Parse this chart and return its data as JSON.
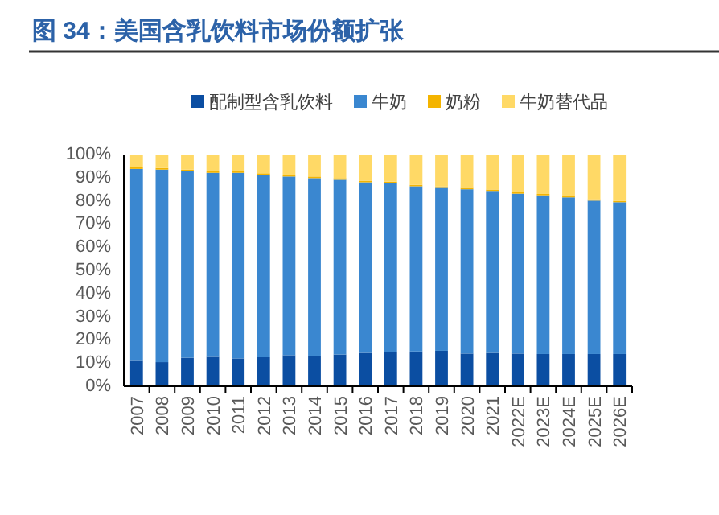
{
  "chart_data": {
    "type": "bar",
    "stacked": true,
    "title": "图 34：美国含乳饮料市场份额扩张",
    "categories": [
      "2007",
      "2008",
      "2009",
      "2010",
      "2011",
      "2012",
      "2013",
      "2014",
      "2015",
      "2016",
      "2017",
      "2018",
      "2019",
      "2020",
      "2021",
      "2022E",
      "2023E",
      "2024E",
      "2025E",
      "2026E"
    ],
    "series": [
      {
        "name": "配制型含乳饮料",
        "color": "#0b4ea2",
        "values": [
          11.3,
          10.4,
          12.3,
          12.7,
          12.0,
          12.5,
          13.4,
          13.2,
          13.7,
          14.4,
          14.8,
          15.0,
          15.3,
          14.1,
          14.4,
          14.1,
          13.9,
          13.9,
          13.9,
          13.9
        ]
      },
      {
        "name": "牛奶",
        "color": "#3a87d0",
        "values": [
          82.5,
          83.1,
          80.5,
          79.4,
          80.1,
          78.7,
          77.1,
          76.6,
          75.4,
          73.6,
          72.9,
          71.3,
          70.3,
          70.9,
          69.9,
          69.0,
          68.5,
          67.6,
          66.2,
          65.5
        ]
      },
      {
        "name": "奶粉",
        "color": "#f4b400",
        "values": [
          0.7,
          0.7,
          0.7,
          0.7,
          0.7,
          0.7,
          0.7,
          0.7,
          0.7,
          0.7,
          0.6,
          0.6,
          0.6,
          0.6,
          0.6,
          0.6,
          0.6,
          0.6,
          0.6,
          0.6
        ]
      },
      {
        "name": "牛奶替代品",
        "color": "#ffd966",
        "values": [
          5.5,
          5.8,
          6.5,
          7.2,
          7.2,
          8.1,
          8.8,
          9.5,
          10.2,
          11.3,
          11.7,
          13.1,
          13.8,
          14.4,
          15.1,
          16.3,
          17.0,
          17.9,
          19.3,
          20.0
        ]
      }
    ],
    "ylim": [
      0,
      100
    ],
    "yticks": [
      {
        "value": 0,
        "label": "0%"
      },
      {
        "value": 10,
        "label": "10%"
      },
      {
        "value": 20,
        "label": "20%"
      },
      {
        "value": 30,
        "label": "30%"
      },
      {
        "value": 40,
        "label": "40%"
      },
      {
        "value": 50,
        "label": "50%"
      },
      {
        "value": 60,
        "label": "60%"
      },
      {
        "value": 70,
        "label": "70%"
      },
      {
        "value": 80,
        "label": "80%"
      },
      {
        "value": 90,
        "label": "90%"
      },
      {
        "value": 100,
        "label": "100%"
      }
    ],
    "legend": "top",
    "grid": false
  }
}
